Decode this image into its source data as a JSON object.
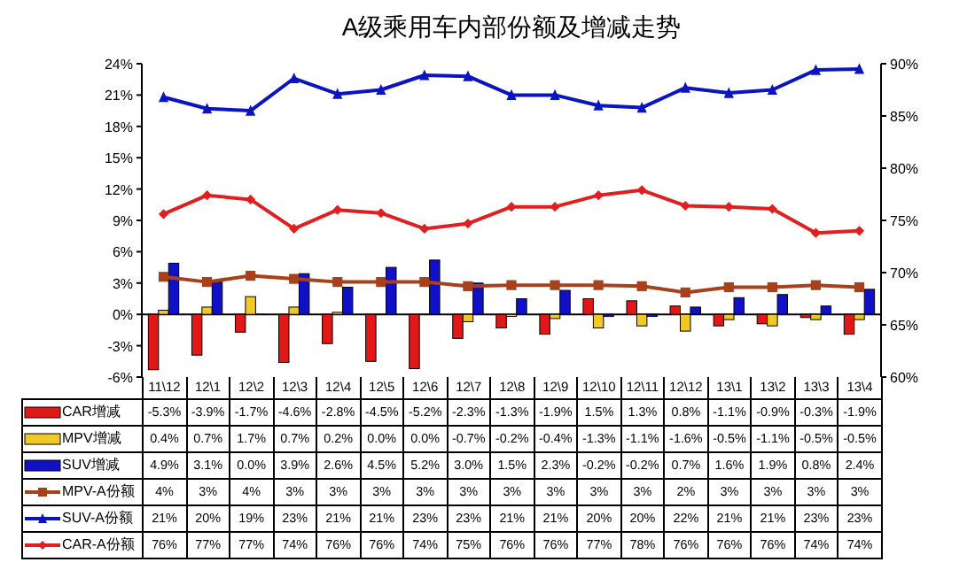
{
  "chart_data": {
    "type": "bar",
    "title": "A级乘用车内部份额及增减走势",
    "categories": [
      "11\\12",
      "12\\1",
      "12\\2",
      "12\\3",
      "12\\4",
      "12\\5",
      "12\\6",
      "12\\7",
      "12\\8",
      "12\\9",
      "12\\10",
      "12\\11",
      "12\\12",
      "13\\1",
      "13\\2",
      "13\\3",
      "13\\4"
    ],
    "series": [
      {
        "name": "CAR增减",
        "color": "#e01818",
        "values": [
          -5.3,
          -3.9,
          -1.7,
          -4.6,
          -2.8,
          -4.5,
          -5.2,
          -2.3,
          -1.3,
          -1.9,
          1.5,
          1.3,
          0.8,
          -1.1,
          -0.9,
          -0.3,
          -1.9
        ],
        "value_labels": [
          "-5.3%",
          "-3.9%",
          "-1.7%",
          "-4.6%",
          "-2.8%",
          "-4.5%",
          "-5.2%",
          "-2.3%",
          "-1.3%",
          "-1.9%",
          "1.5%",
          "1.3%",
          "0.8%",
          "-1.1%",
          "-0.9%",
          "-0.3%",
          "-1.9%"
        ]
      },
      {
        "name": "MPV增减",
        "color": "#f0c828",
        "values": [
          0.4,
          0.7,
          1.7,
          0.7,
          0.2,
          0.0,
          0.0,
          -0.7,
          -0.2,
          -0.4,
          -1.3,
          -1.1,
          -1.6,
          -0.5,
          -1.1,
          -0.5,
          -0.5
        ],
        "value_labels": [
          "0.4%",
          "0.7%",
          "1.7%",
          "0.7%",
          "0.2%",
          "0.0%",
          "0.0%",
          "-0.7%",
          "-0.2%",
          "-0.4%",
          "-1.3%",
          "-1.1%",
          "-1.6%",
          "-0.5%",
          "-1.1%",
          "-0.5%",
          "-0.5%"
        ]
      },
      {
        "name": "SUV增减",
        "color": "#1010c8",
        "values": [
          4.9,
          3.1,
          0.0,
          3.9,
          2.6,
          4.5,
          5.2,
          3.0,
          1.5,
          2.3,
          -0.2,
          -0.2,
          0.7,
          1.6,
          1.9,
          0.8,
          2.4
        ],
        "value_labels": [
          "4.9%",
          "3.1%",
          "0.0%",
          "3.9%",
          "2.6%",
          "4.5%",
          "5.2%",
          "3.0%",
          "1.5%",
          "2.3%",
          "-0.2%",
          "-0.2%",
          "0.7%",
          "1.6%",
          "1.9%",
          "0.8%",
          "2.4%"
        ]
      },
      {
        "name": "MPV-A份额",
        "type": "line",
        "marker": "square",
        "color": "#a8401c",
        "values": [
          3.6,
          3.1,
          3.7,
          3.4,
          3.1,
          3.1,
          3.1,
          2.7,
          2.8,
          2.8,
          2.8,
          2.7,
          2.1,
          2.6,
          2.6,
          2.8,
          2.6
        ],
        "value_labels": [
          "4%",
          "3%",
          "4%",
          "3%",
          "3%",
          "3%",
          "3%",
          "3%",
          "3%",
          "3%",
          "3%",
          "3%",
          "2%",
          "3%",
          "3%",
          "3%",
          "3%"
        ]
      },
      {
        "name": "SUV-A份额",
        "type": "line",
        "marker": "triangle",
        "color": "#0a14c0",
        "values": [
          20.8,
          19.7,
          19.5,
          22.6,
          21.1,
          21.5,
          22.9,
          22.8,
          21.0,
          21.0,
          20.0,
          19.8,
          21.7,
          21.2,
          21.5,
          23.4,
          23.5
        ],
        "value_labels": [
          "21%",
          "20%",
          "19%",
          "23%",
          "21%",
          "21%",
          "23%",
          "23%",
          "21%",
          "21%",
          "20%",
          "20%",
          "22%",
          "21%",
          "21%",
          "23%",
          "23%"
        ]
      },
      {
        "name": "CAR-A份额",
        "type": "line",
        "marker": "diamond",
        "axis": "y2",
        "color": "#e02020",
        "values": [
          75.6,
          77.4,
          77.0,
          74.2,
          76.0,
          75.7,
          74.2,
          74.7,
          76.3,
          76.3,
          77.4,
          77.9,
          76.4,
          76.3,
          76.1,
          73.8,
          74.0
        ],
        "value_labels": [
          "76%",
          "77%",
          "77%",
          "74%",
          "76%",
          "76%",
          "74%",
          "75%",
          "76%",
          "76%",
          "77%",
          "78%",
          "76%",
          "76%",
          "76%",
          "74%",
          "74%"
        ]
      }
    ],
    "ylim": [
      -6,
      24
    ],
    "yticks": [
      {
        "value": -6,
        "label": "-6%"
      },
      {
        "value": -3,
        "label": "-3%"
      },
      {
        "value": 0,
        "label": "0%"
      },
      {
        "value": 3,
        "label": "3%"
      },
      {
        "value": 6,
        "label": "6%"
      },
      {
        "value": 9,
        "label": "9%"
      },
      {
        "value": 12,
        "label": "12%"
      },
      {
        "value": 15,
        "label": "15%"
      },
      {
        "value": 18,
        "label": "18%"
      },
      {
        "value": 21,
        "label": "21%"
      },
      {
        "value": 24,
        "label": "24%"
      }
    ],
    "y2lim": [
      60,
      90
    ],
    "y2ticks": [
      {
        "value": 60,
        "label": "60%"
      },
      {
        "value": 65,
        "label": "65%"
      },
      {
        "value": 70,
        "label": "70%"
      },
      {
        "value": 75,
        "label": "75%"
      },
      {
        "value": 80,
        "label": "80%"
      },
      {
        "value": 85,
        "label": "85%"
      },
      {
        "value": 90,
        "label": "90%"
      }
    ],
    "legend": "bottom"
  }
}
